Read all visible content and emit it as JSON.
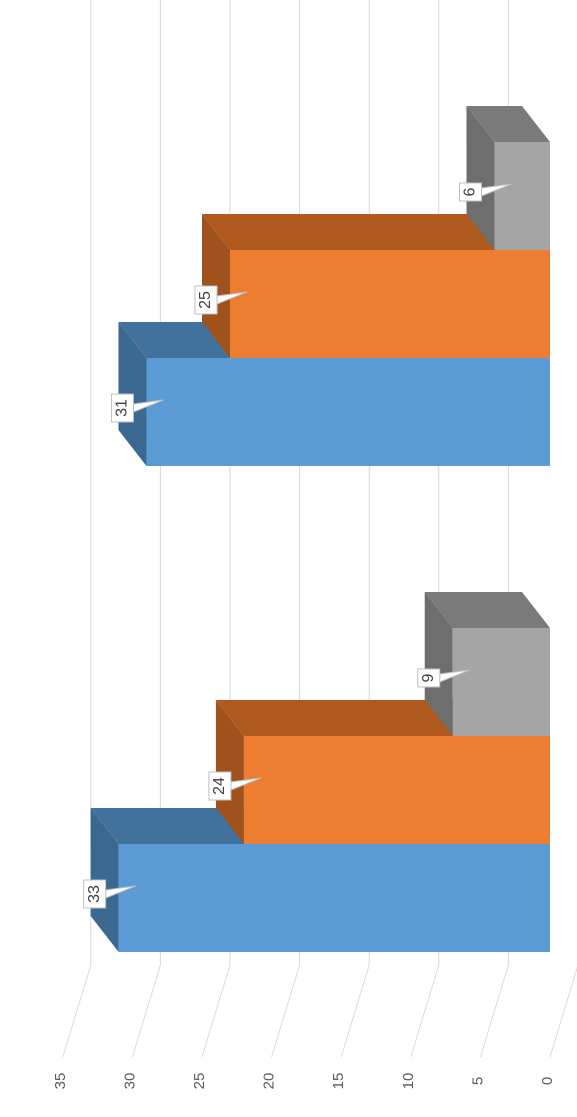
{
  "chart_data": {
    "type": "bar",
    "orientation": "horizontal-3d",
    "rotated": "page rotated 90 degrees clockwise",
    "categories": [
      "",
      ""
    ],
    "series": [
      {
        "values": [
          33,
          31
        ],
        "color": "#5b9bd5",
        "top_color": "#41729e",
        "side_color": "#3a6891"
      },
      {
        "values": [
          24,
          25
        ],
        "color": "#ed7d31",
        "top_color": "#b0591f",
        "side_color": "#a0521d"
      },
      {
        "values": [
          9,
          6
        ],
        "color": "#a5a5a5",
        "top_color": "#7a7a7a",
        "side_color": "#6e6e6e"
      }
    ],
    "value_axis": {
      "min": 0,
      "max": 35,
      "step": 5,
      "tick_labels": [
        "0",
        "5",
        "10",
        "15",
        "20",
        "25",
        "30",
        "35"
      ]
    },
    "data_labels": true,
    "grid": true,
    "gridline_color": "#d9d9d9",
    "legend": "none",
    "title": "",
    "xlabel": "",
    "ylabel": ""
  }
}
